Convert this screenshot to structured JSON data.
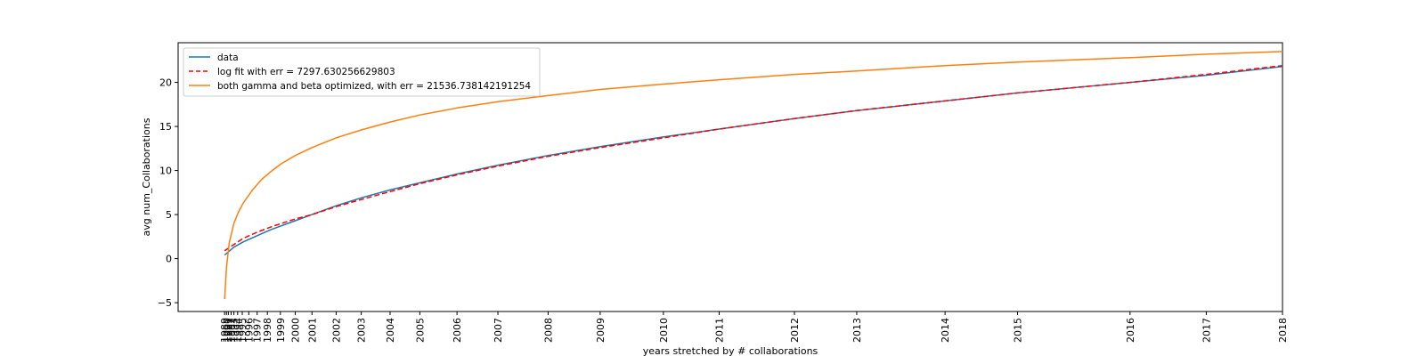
{
  "chart_data": {
    "type": "line",
    "xlabel": "years stretched by # collaborations",
    "ylabel": "avg num_Collaborations",
    "ylim": [
      -6,
      24.5
    ],
    "yticks": [
      -5,
      0,
      5,
      10,
      15,
      20
    ],
    "xlim": [
      -0.5,
      11.38
    ],
    "grid": false,
    "legend_position": "top-left",
    "x_ticks": [
      {
        "label": "1989",
        "x": 0.0
      },
      {
        "label": "1990",
        "x": 0.02
      },
      {
        "label": "1991",
        "x": 0.04
      },
      {
        "label": "1992",
        "x": 0.07
      },
      {
        "label": "1993",
        "x": 0.1
      },
      {
        "label": "1994",
        "x": 0.14
      },
      {
        "label": "1995",
        "x": 0.19
      },
      {
        "label": "1996",
        "x": 0.26
      },
      {
        "label": "1997",
        "x": 0.35
      },
      {
        "label": "1998",
        "x": 0.46
      },
      {
        "label": "1999",
        "x": 0.6
      },
      {
        "label": "2000",
        "x": 0.76
      },
      {
        "label": "2001",
        "x": 0.94
      },
      {
        "label": "2002",
        "x": 1.2
      },
      {
        "label": "2003",
        "x": 1.47
      },
      {
        "label": "2004",
        "x": 1.78
      },
      {
        "label": "2005",
        "x": 2.1
      },
      {
        "label": "2006",
        "x": 2.5
      },
      {
        "label": "2007",
        "x": 2.94
      },
      {
        "label": "2008",
        "x": 3.48
      },
      {
        "label": "2009",
        "x": 4.04
      },
      {
        "label": "2010",
        "x": 4.72
      },
      {
        "label": "2011",
        "x": 5.32
      },
      {
        "label": "2012",
        "x": 6.13
      },
      {
        "label": "2013",
        "x": 6.8
      },
      {
        "label": "2014",
        "x": 7.75
      },
      {
        "label": "2015",
        "x": 8.53
      },
      {
        "label": "2016",
        "x": 9.74
      },
      {
        "label": "2017",
        "x": 10.56
      },
      {
        "label": "2018",
        "x": 11.38
      }
    ],
    "series": [
      {
        "name": "data",
        "color": "#1f77b4",
        "style": "solid",
        "x": [
          0.0,
          0.1,
          0.2,
          0.35,
          0.5,
          0.76,
          0.94,
          1.2,
          1.47,
          1.78,
          2.1,
          2.5,
          2.94,
          3.48,
          4.04,
          4.72,
          5.32,
          6.13,
          6.8,
          7.75,
          8.53,
          9.74,
          10.56,
          11.38
        ],
        "values": [
          0.4,
          1.3,
          1.9,
          2.6,
          3.3,
          4.3,
          5.0,
          6.0,
          6.9,
          7.8,
          8.6,
          9.6,
          10.6,
          11.7,
          12.7,
          13.8,
          14.7,
          15.9,
          16.8,
          17.9,
          18.8,
          20.0,
          20.8,
          21.8
        ]
      },
      {
        "name": "log fit with err = 7297.630256629803",
        "color": "#ff0000",
        "style": "dashed",
        "x": [
          0.0,
          0.1,
          0.2,
          0.35,
          0.5,
          0.76,
          0.94,
          1.2,
          1.47,
          1.78,
          2.1,
          2.5,
          2.94,
          3.48,
          4.04,
          4.72,
          5.32,
          6.13,
          6.8,
          7.75,
          8.53,
          9.74,
          10.56,
          11.38
        ],
        "values": [
          0.9,
          1.6,
          2.3,
          3.0,
          3.6,
          4.5,
          5.0,
          5.9,
          6.7,
          7.6,
          8.5,
          9.5,
          10.5,
          11.6,
          12.6,
          13.7,
          14.7,
          15.9,
          16.8,
          17.9,
          18.8,
          20.0,
          20.9,
          21.9
        ]
      },
      {
        "name": "both gamma and beta optimized, with err = 21536.738142191254",
        "color": "#ff7f0e",
        "style": "solid",
        "x": [
          0.0,
          0.02,
          0.05,
          0.1,
          0.15,
          0.2,
          0.3,
          0.4,
          0.5,
          0.6,
          0.76,
          0.94,
          1.2,
          1.47,
          1.78,
          2.1,
          2.5,
          2.94,
          3.48,
          4.04,
          4.72,
          5.32,
          6.13,
          6.8,
          7.75,
          8.53,
          9.74,
          10.56,
          11.38
        ],
        "values": [
          -4.6,
          -1.0,
          1.8,
          4.0,
          5.3,
          6.3,
          7.8,
          9.0,
          9.9,
          10.7,
          11.7,
          12.6,
          13.7,
          14.6,
          15.5,
          16.3,
          17.1,
          17.8,
          18.5,
          19.2,
          19.8,
          20.3,
          20.9,
          21.3,
          21.9,
          22.3,
          22.8,
          23.2,
          23.5
        ]
      }
    ]
  }
}
